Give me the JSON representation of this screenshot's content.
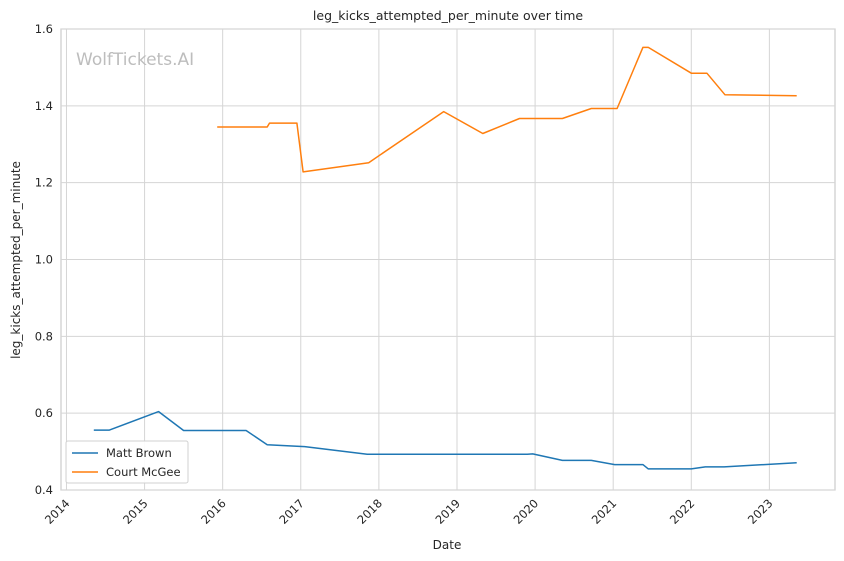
{
  "chart_data": {
    "type": "line",
    "title": "leg_kicks_attempted_per_minute over time",
    "xlabel": "Date",
    "ylabel": "leg_kicks_attempted_per_minute",
    "watermark": "WolfTickets.AI",
    "xlim": [
      2013.93,
      2023.84
    ],
    "ylim": [
      0.4,
      1.6
    ],
    "x_ticks": [
      "2014",
      "2015",
      "2016",
      "2017",
      "2018",
      "2019",
      "2020",
      "2021",
      "2022",
      "2023"
    ],
    "y_ticks": [
      "0.4",
      "0.6",
      "0.8",
      "1.0",
      "1.2",
      "1.4",
      "1.6"
    ],
    "grid": true,
    "legend_position": "bottom-left",
    "series": [
      {
        "name": "Matt Brown",
        "color": "#1f77b4",
        "x": [
          2014.35,
          2014.55,
          2015.18,
          2015.5,
          2016.3,
          2016.57,
          2016.95,
          2017.05,
          2017.85,
          2019.0,
          2019.9,
          2019.97,
          2020.35,
          2020.72,
          2021.02,
          2021.38,
          2021.45,
          2022.0,
          2022.18,
          2022.42,
          2023.35
        ],
        "y": [
          0.556,
          0.556,
          0.604,
          0.555,
          0.555,
          0.518,
          0.514,
          0.513,
          0.493,
          0.493,
          0.493,
          0.494,
          0.477,
          0.477,
          0.466,
          0.466,
          0.455,
          0.455,
          0.46,
          0.46,
          0.471
        ]
      },
      {
        "name": "Court McGee",
        "color": "#ff7f0e",
        "x": [
          2015.93,
          2016.57,
          2016.6,
          2016.95,
          2017.03,
          2017.87,
          2018.83,
          2019.33,
          2019.8,
          2020.35,
          2020.72,
          2021.05,
          2021.38,
          2021.45,
          2022.0,
          2022.2,
          2022.43,
          2023.35
        ],
        "y": [
          1.345,
          1.345,
          1.355,
          1.355,
          1.228,
          1.252,
          1.385,
          1.328,
          1.367,
          1.367,
          1.393,
          1.393,
          1.552,
          1.552,
          1.485,
          1.485,
          1.429,
          1.426
        ]
      }
    ]
  }
}
